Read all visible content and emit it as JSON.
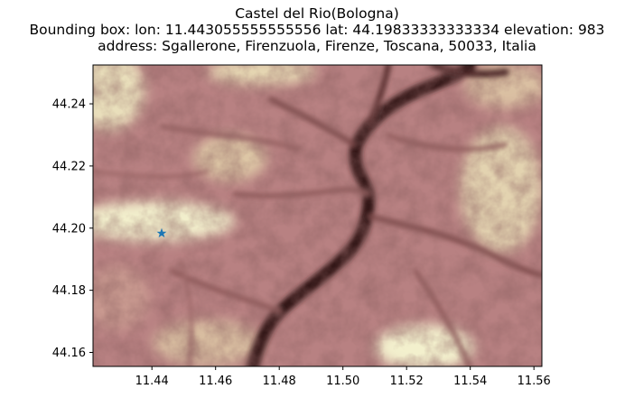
{
  "title": {
    "line1": "Castel del Rio(Bologna)",
    "line2": "Bounding box: lon: 11.443055555555556 lat: 44.19833333333334 elevation: 983",
    "line3": "address: Sgallerone, Firenzuola, Firenze, Toscana, 50033, Italia"
  },
  "chart_data": {
    "type": "heatmap",
    "colormap": "pink-terrain",
    "xlim": [
      11.4215,
      11.5625
    ],
    "ylim": [
      44.1555,
      44.2525
    ],
    "x_ticks": [
      "11.44",
      "11.46",
      "11.48",
      "11.50",
      "11.52",
      "11.54",
      "11.56"
    ],
    "x_tick_values": [
      11.44,
      11.46,
      11.48,
      11.5,
      11.52,
      11.54,
      11.56
    ],
    "y_ticks": [
      "44.16",
      "44.18",
      "44.20",
      "44.22",
      "44.24"
    ],
    "y_tick_values": [
      44.16,
      44.18,
      44.2,
      44.22,
      44.24
    ],
    "marker": {
      "lon": 11.443055555555556,
      "lat": 44.19833333333334,
      "symbol": "star",
      "color": "#1f77b4"
    },
    "colors": {
      "low": "#3e1f1f",
      "mid": "#b88182",
      "high": "#f5f2cf"
    }
  }
}
